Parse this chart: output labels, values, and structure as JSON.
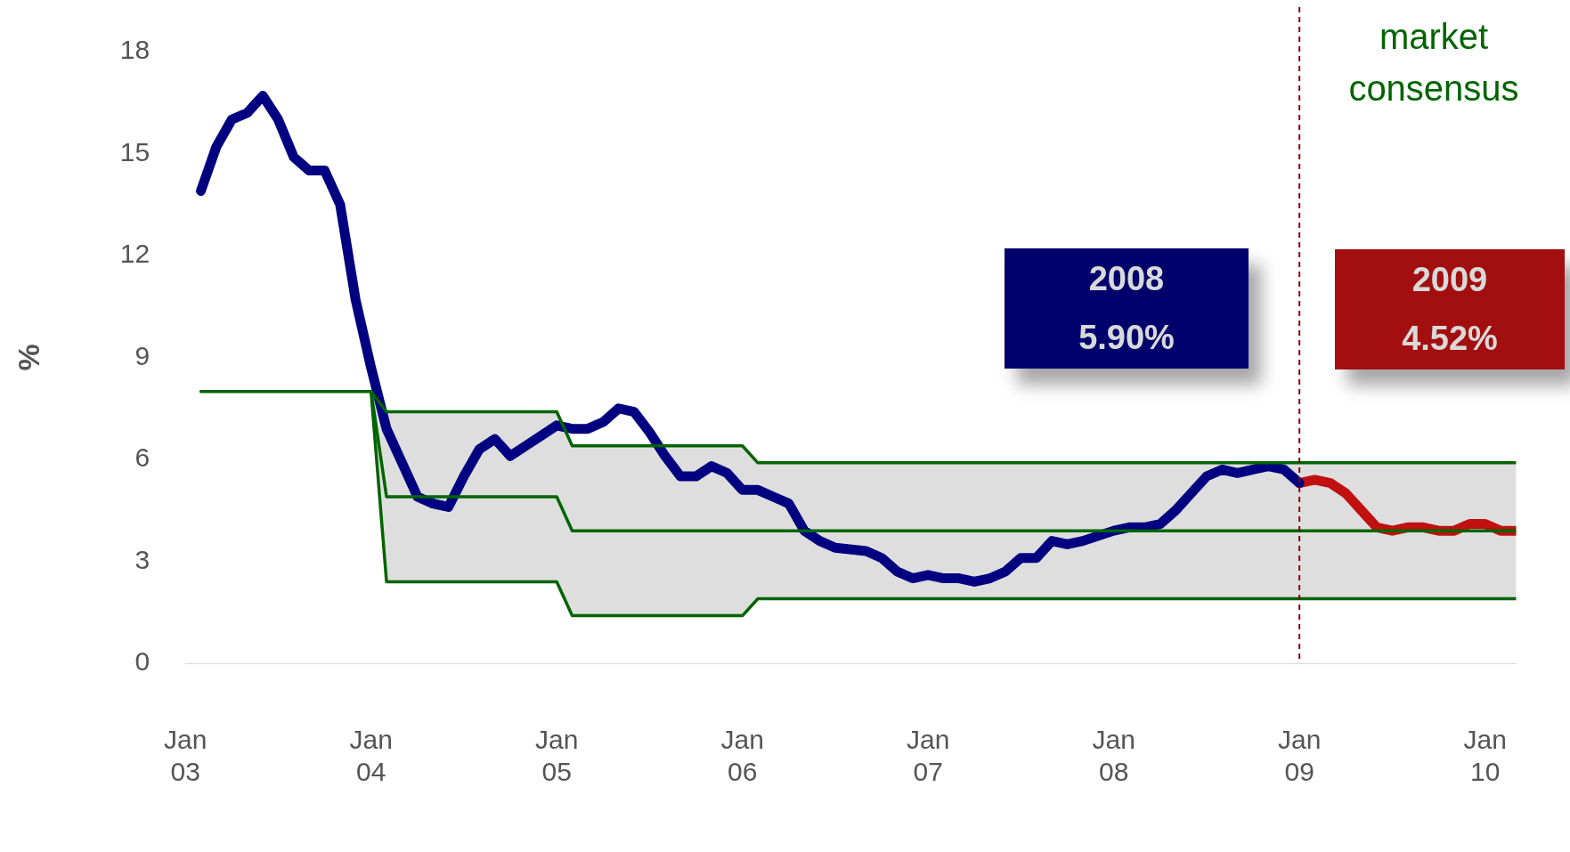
{
  "chart_data": {
    "type": "line",
    "ylabel": "%",
    "xticks": [
      {
        "value": "2003-01",
        "label": "Jan 03"
      },
      {
        "value": "2004-01",
        "label": "Jan 04"
      },
      {
        "value": "2005-01",
        "label": "Jan 05"
      },
      {
        "value": "2006-01",
        "label": "Jan 06"
      },
      {
        "value": "2007-01",
        "label": "Jan 07"
      },
      {
        "value": "2008-01",
        "label": "Jan 08"
      },
      {
        "value": "2009-01",
        "label": "Jan 09"
      },
      {
        "value": "2010-01",
        "label": "Jan 10"
      }
    ],
    "xlim": [
      "2003-01",
      "2010-03"
    ],
    "ylim": [
      0,
      18
    ],
    "yticks": [
      0,
      3,
      6,
      9,
      12,
      15,
      18
    ],
    "series": [
      {
        "color": "#006400",
        "x": [
          "2003-02",
          "2004-01",
          "2004-02",
          "2005-01",
          "2005-02",
          "2006-01",
          "2006-02",
          "2010-03"
        ],
        "values": [
          8.0,
          8.0,
          4.9,
          4.9,
          3.9,
          3.9,
          3.9,
          3.9
        ],
        "lower": [
          8.0,
          8.0,
          2.4,
          2.4,
          1.4,
          1.4,
          1.9,
          1.9
        ],
        "upper": [
          8.0,
          8.0,
          7.4,
          7.4,
          6.4,
          6.4,
          5.9,
          5.9
        ]
      },
      {
        "color": "#006400",
        "x": [
          "2004-01",
          "2004-02",
          "2005-01",
          "2005-02",
          "2006-01",
          "2006-02",
          "2010-03"
        ],
        "values": [
          8.0,
          7.4,
          7.4,
          6.4,
          6.4,
          5.9,
          5.9
        ]
      },
      {
        "color": "#006400",
        "x": [
          "2004-01",
          "2004-02",
          "2005-01",
          "2005-02",
          "2006-01",
          "2006-02",
          "2010-03"
        ],
        "values": [
          8.0,
          2.4,
          2.4,
          1.4,
          1.4,
          1.9,
          1.9
        ]
      },
      {
        "color": "#000080",
        "x": [
          "2003-02",
          "2003-03",
          "2003-04",
          "2003-05",
          "2003-06",
          "2003-07",
          "2003-08",
          "2003-09",
          "2003-10",
          "2003-11",
          "2003-12",
          "2004-01",
          "2004-02",
          "2004-03",
          "2004-04",
          "2004-05",
          "2004-06",
          "2004-07",
          "2004-08",
          "2004-09",
          "2004-10",
          "2004-11",
          "2004-12",
          "2005-01",
          "2005-02",
          "2005-03",
          "2005-04",
          "2005-05",
          "2005-06",
          "2005-07",
          "2005-08",
          "2005-09",
          "2005-10",
          "2005-11",
          "2005-12",
          "2006-01",
          "2006-02",
          "2006-03",
          "2006-04",
          "2006-05",
          "2006-06",
          "2006-07",
          "2006-09",
          "2006-10",
          "2006-11",
          "2006-12",
          "2007-01",
          "2007-02",
          "2007-03",
          "2007-04",
          "2007-05",
          "2007-06",
          "2007-07",
          "2007-08",
          "2007-09",
          "2007-10",
          "2007-11",
          "2008-01",
          "2008-02",
          "2008-03",
          "2008-04",
          "2008-05",
          "2008-06",
          "2008-07",
          "2008-08",
          "2008-09",
          "2008-10",
          "2008-11",
          "2008-12",
          "2009-01"
        ],
        "values": [
          13.9,
          15.2,
          16.0,
          16.2,
          16.7,
          16.0,
          14.9,
          14.5,
          14.5,
          13.5,
          10.7,
          8.7,
          6.9,
          5.9,
          4.9,
          4.7,
          4.6,
          5.5,
          6.3,
          6.6,
          6.1,
          6.4,
          6.7,
          7.0,
          6.9,
          6.9,
          7.1,
          7.5,
          7.4,
          6.8,
          6.1,
          5.5,
          5.5,
          5.8,
          5.6,
          5.1,
          5.1,
          4.9,
          4.7,
          3.9,
          3.6,
          3.4,
          3.3,
          3.1,
          2.7,
          2.5,
          2.6,
          2.5,
          2.5,
          2.4,
          2.5,
          2.7,
          3.1,
          3.1,
          3.6,
          3.5,
          3.6,
          3.9,
          4.0,
          4.0,
          4.1,
          4.5,
          5.0,
          5.5,
          5.7,
          5.6,
          5.7,
          5.8,
          5.7,
          5.3
        ]
      },
      {
        "color": "#c01010",
        "x": [
          "2009-01",
          "2009-02",
          "2009-03",
          "2009-04",
          "2009-05",
          "2009-06",
          "2009-07",
          "2009-08",
          "2009-09",
          "2009-10",
          "2009-11",
          "2009-12",
          "2010-01",
          "2010-02",
          "2010-03"
        ],
        "values": [
          5.3,
          5.4,
          5.3,
          5.0,
          4.5,
          4.0,
          3.9,
          4.0,
          4.0,
          3.9,
          3.9,
          4.1,
          4.1,
          3.9,
          3.9
        ]
      }
    ],
    "ref_lines": [
      {
        "axis": "x",
        "value": "2009-01",
        "color": "#8b0000",
        "line_style": "dashed"
      }
    ],
    "annotations": [
      "2008\n5.90%",
      "2009\n4.52%",
      "market\nconsensus"
    ]
  }
}
